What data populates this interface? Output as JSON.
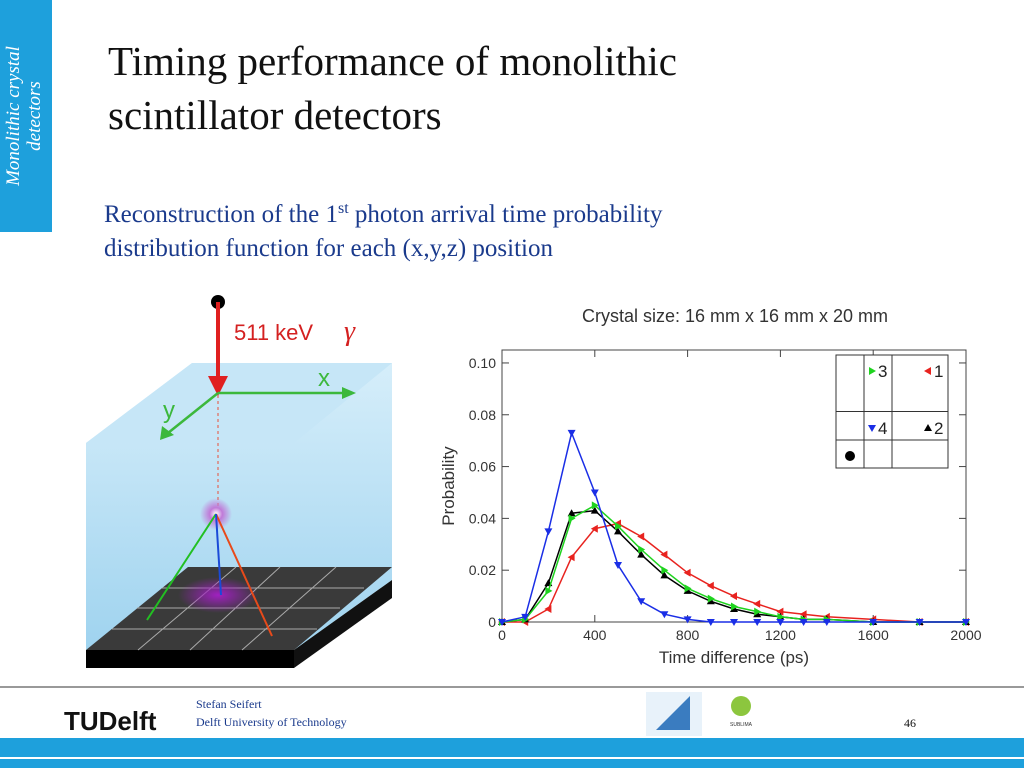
{
  "sidebar": {
    "lines": [
      "Monolithic crystal",
      "detectors"
    ]
  },
  "title": {
    "lines": [
      "Timing performance of monolithic",
      "scintillator detectors"
    ]
  },
  "body": {
    "before": "Reconstruction of the 1",
    "sup": "st",
    "line1_after": " photon arrival time probability",
    "line2": "distribution function for each (x,y,z) position"
  },
  "figure": {
    "energy": "511 keV",
    "gamma": "γ",
    "x_axis": "x",
    "y_axis": "y"
  },
  "chart_data": {
    "type": "line",
    "title": "Crystal size: 16 mm x 16 mm x 20 mm",
    "xlabel": "Time difference (ps)",
    "ylabel": "Probability",
    "x": [
      0,
      100,
      200,
      300,
      400,
      500,
      600,
      700,
      800,
      900,
      1000,
      1100,
      1200,
      1300,
      1400,
      1600,
      1800,
      2000
    ],
    "series": [
      {
        "name": "1",
        "color": "#e8231f",
        "marker": "triangle-left",
        "values": [
          0,
          0,
          0.005,
          0.025,
          0.036,
          0.038,
          0.033,
          0.026,
          0.019,
          0.014,
          0.01,
          0.007,
          0.004,
          0.003,
          0.002,
          0.001,
          0,
          0
        ]
      },
      {
        "name": "2",
        "color": "#000000",
        "marker": "triangle-up",
        "values": [
          0,
          0.001,
          0.015,
          0.042,
          0.043,
          0.035,
          0.026,
          0.018,
          0.012,
          0.008,
          0.005,
          0.003,
          0.002,
          0.001,
          0.001,
          0,
          0,
          0
        ]
      },
      {
        "name": "3",
        "color": "#1fd31f",
        "marker": "triangle-right",
        "values": [
          0,
          0.001,
          0.012,
          0.04,
          0.045,
          0.037,
          0.028,
          0.02,
          0.013,
          0.009,
          0.006,
          0.004,
          0.002,
          0.001,
          0.001,
          0,
          0,
          0
        ]
      },
      {
        "name": "4",
        "color": "#1a2ee6",
        "marker": "triangle-down",
        "values": [
          0,
          0.002,
          0.035,
          0.073,
          0.05,
          0.022,
          0.008,
          0.003,
          0.001,
          0,
          0,
          0,
          0,
          0,
          0,
          0,
          0,
          0
        ]
      }
    ],
    "xlim": [
      0,
      2000
    ],
    "xticks": [
      0,
      400,
      800,
      1200,
      1600,
      2000
    ],
    "ylim": [
      0,
      0.105
    ],
    "yticks": [
      0,
      0.02,
      0.04,
      0.06,
      0.08,
      {
        "value": 0.1,
        "label": "0.10"
      }
    ],
    "legend": "upper right"
  },
  "footer": {
    "logo": "TUDelft",
    "author": "Stefan Seifert",
    "affiliation": "Delft University of Technology",
    "partner": "SUBLIMA",
    "page": "46"
  }
}
